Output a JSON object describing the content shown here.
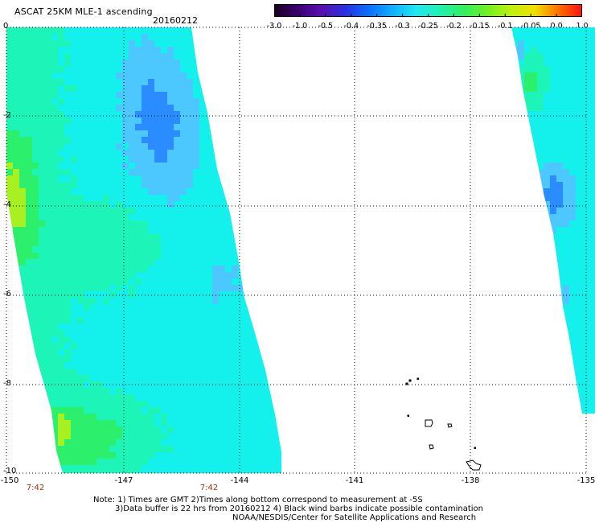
{
  "header": {
    "title": "ASCAT 25KM MLE-1 ascending",
    "date": "20160212"
  },
  "colorbar": {
    "tick_labels": [
      "-3.0",
      "-1.0",
      "-0.5",
      "-0.4",
      "-0.35",
      "-0.3",
      "-0.25",
      "-0.2",
      "-0.15",
      "-0.1",
      "-0.05",
      "0.0",
      "1.0"
    ],
    "colors": [
      "#1a0020",
      "#3a0070",
      "#5a10b0",
      "#2a30e0",
      "#0a70ff",
      "#10b0ff",
      "#20e8f0",
      "#20f0b0",
      "#30f060",
      "#70f020",
      "#c0f010",
      "#f0e000",
      "#ff7000",
      "#ff1010"
    ]
  },
  "map": {
    "latitude_labels": [
      "0",
      "-2",
      "-4",
      "-6",
      "-8",
      "-10"
    ],
    "longitude_labels": [
      "-150",
      "-147",
      "-144",
      "-141",
      "-138",
      "-135"
    ],
    "time_labels": [
      "7:42",
      "7:42"
    ],
    "palette": {
      "blue": "#2a8cff",
      "light_blue": "#4cc8ff",
      "cyan": "#14f0ec",
      "aqua_green": "#1cf4b8",
      "green": "#2cf06c",
      "yellow_green": "#a8f020",
      "coast": "#000000",
      "grid": "#000000"
    }
  },
  "notes": {
    "line1": "Note: 1) Times are GMT 2)Times along bottom correspond to measurement at -5S",
    "line2": "3)Data buffer is 22 hrs from 20160212 4) Black wind barbs indicate possible contamination",
    "line3": "NOAA/NESDIS/Center for Satellite Applications and Research"
  }
}
